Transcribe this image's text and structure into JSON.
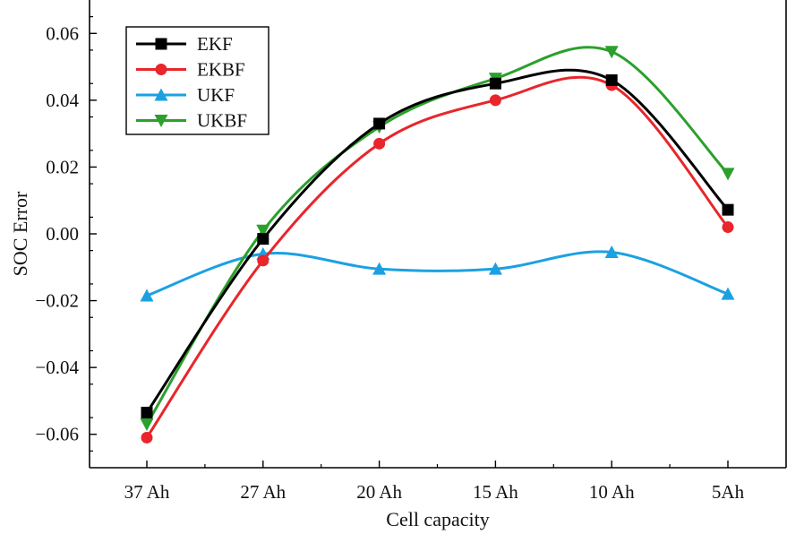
{
  "chart_data": {
    "type": "line",
    "xlabel": "Cell capacity",
    "ylabel": "SOC Error",
    "categories": [
      "37 Ah",
      "27 Ah",
      "20 Ah",
      "15 Ah",
      "10 Ah",
      "5Ah"
    ],
    "ylim": [
      -0.07,
      0.07
    ],
    "yticks": [
      -0.06,
      -0.04,
      -0.02,
      0.0,
      0.02,
      0.04,
      0.06
    ],
    "ytick_labels": [
      "−0.06",
      "−0.04",
      "−0.02",
      "0.00",
      "0.02",
      "0.04",
      "0.06"
    ],
    "grid": false,
    "legend_position": "top-left",
    "series": [
      {
        "name": "EKF",
        "color": "#000000",
        "marker": "square",
        "values": [
          -0.0535,
          -0.0015,
          0.033,
          0.045,
          0.046,
          0.0072
        ]
      },
      {
        "name": "EKBF",
        "color": "#e8262b",
        "marker": "circle",
        "values": [
          -0.061,
          -0.008,
          0.027,
          0.04,
          0.0445,
          0.002
        ]
      },
      {
        "name": "UKF",
        "color": "#1ba1e2",
        "marker": "triangle-up",
        "values": [
          -0.0185,
          -0.006,
          -0.0105,
          -0.0105,
          -0.0055,
          -0.018
        ]
      },
      {
        "name": "UKBF",
        "color": "#2ca02c",
        "marker": "triangle-down",
        "values": [
          -0.057,
          0.001,
          0.032,
          0.0465,
          0.0545,
          0.018
        ]
      }
    ]
  }
}
